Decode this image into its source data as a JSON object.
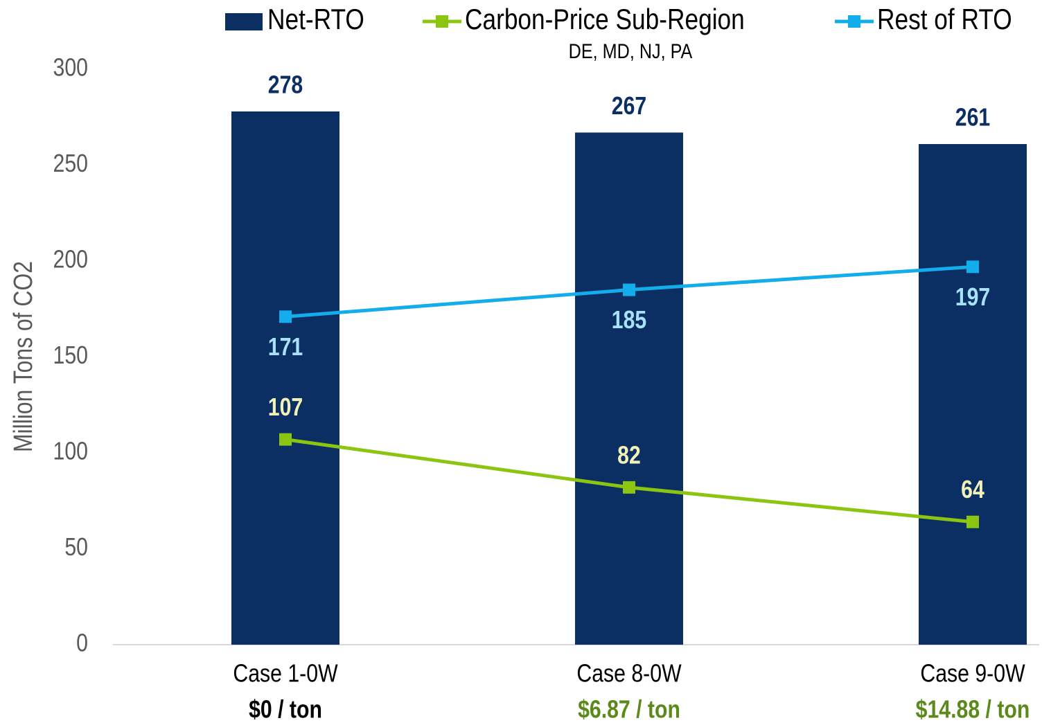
{
  "chart_data": {
    "type": "bar",
    "y_label": "Million Tons of CO2",
    "categories": [
      "Case 1-0W",
      "Case 8-0W",
      "Case 9-0W"
    ],
    "sublabels": [
      "$0 / ton",
      "$6.87 / ton",
      "$14.88 / ton"
    ],
    "sublabel_colors": [
      "#000000",
      "#5b8a1a",
      "#5b8a1a"
    ],
    "ylim": [
      0,
      300
    ],
    "yticks": [
      0,
      50,
      100,
      150,
      200,
      250,
      300
    ],
    "series": [
      {
        "name": "Net-RTO",
        "type": "bar",
        "color": "#0b2f63",
        "label_color": "#0b2f63",
        "label_position": "top",
        "values": [
          278,
          267,
          261
        ]
      },
      {
        "name": "Carbon-Price Sub-Region",
        "subtitle": "DE, MD, NJ, PA",
        "type": "line",
        "color": "#8cc511",
        "label_color": "#f2f2b8",
        "label_position": "above",
        "values": [
          107,
          82,
          64
        ]
      },
      {
        "name": "Rest of RTO",
        "type": "line",
        "color": "#12adea",
        "label_color": "#a8e2fa",
        "label_position": "below",
        "values": [
          171,
          185,
          197
        ]
      }
    ]
  }
}
